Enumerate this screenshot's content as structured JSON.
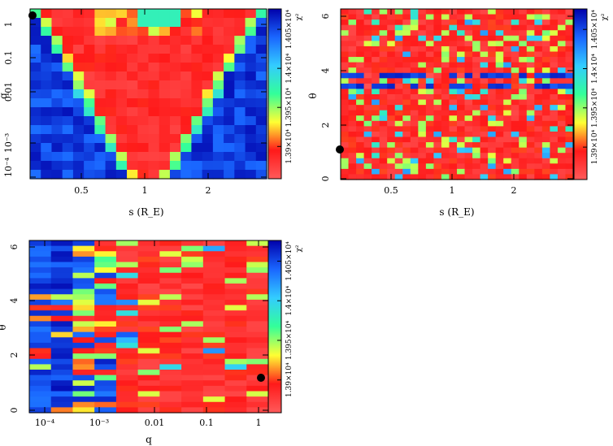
{
  "colors": {
    "scale": [
      "#ff5a5a",
      "#ff1a1a",
      "#ffff33",
      "#33ff99",
      "#33ccff",
      "#1a66ff",
      "#0000aa"
    ]
  },
  "colorbar": {
    "label": "χ²",
    "ticks": [
      "1.39×10⁴",
      "1.395×10⁴",
      "1.4×10⁴",
      "1.405×10⁴"
    ]
  },
  "chart_data": [
    {
      "type": "heatmap",
      "xlabel": "s (R_E)",
      "ylabel": "q",
      "x_scale": "log",
      "y_scale": "log",
      "xlim": [
        0.34,
        4.5
      ],
      "ylim": [
        6e-05,
        2.0
      ],
      "x_ticks": [
        "0.5",
        "1",
        "2"
      ],
      "y_ticks": [
        "10⁻⁴",
        "10⁻³",
        "0.01",
        "0.1",
        "1"
      ],
      "grid": false,
      "best_fit_point": {
        "s": 0.35,
        "q": 1.1
      },
      "description": "χ² minimum V-shaped valley around s≈1; high χ² (blue) at low q far from s=1"
    },
    {
      "type": "heatmap",
      "xlabel": "s (R_E)",
      "ylabel": "θ",
      "x_scale": "log",
      "y_scale": "linear",
      "xlim": [
        0.34,
        4.5
      ],
      "ylim": [
        0,
        6.28
      ],
      "x_ticks": [
        "0.5",
        "1",
        "2"
      ],
      "y_ticks": [
        "0",
        "2",
        "4",
        "6"
      ],
      "grid": false,
      "best_fit_point": {
        "s": 0.35,
        "theta": 1.05
      }
    },
    {
      "type": "heatmap",
      "xlabel": "q",
      "ylabel": "θ",
      "x_scale": "log",
      "y_scale": "linear",
      "xlim": [
        6e-05,
        2.0
      ],
      "ylim": [
        0,
        6.28
      ],
      "x_ticks": [
        "10⁻⁴",
        "10⁻³",
        "0.01",
        "0.1",
        "1"
      ],
      "y_ticks": [
        "0",
        "2",
        "4",
        "6"
      ],
      "grid": false,
      "best_fit_point": {
        "q": 1.1,
        "theta": 1.05
      }
    }
  ]
}
